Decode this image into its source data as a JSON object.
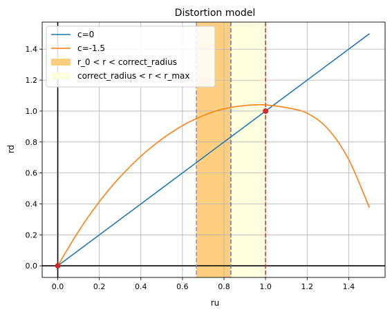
{
  "chart_data": {
    "type": "line",
    "title": "Distortion model",
    "xlabel": "ru",
    "ylabel": "rd",
    "xlim": [
      -0.075,
      1.575
    ],
    "ylim": [
      -0.075,
      1.575
    ],
    "x_ticks": [
      0.0,
      0.2,
      0.4,
      0.6,
      0.8,
      1.0,
      1.2,
      1.4
    ],
    "y_ticks": [
      0.0,
      0.2,
      0.4,
      0.6,
      0.8,
      1.0,
      1.2,
      1.4
    ],
    "x_tick_labels": [
      "0.0",
      "0.2",
      "0.4",
      "0.6",
      "0.8",
      "1.0",
      "1.2",
      "1.4"
    ],
    "y_tick_labels": [
      "0.0",
      "0.2",
      "0.4",
      "0.6",
      "0.8",
      "1.0",
      "1.2",
      "1.4"
    ],
    "grid": true,
    "legend_position": "top-left",
    "series": [
      {
        "name": "c=0",
        "color": "#1f77b4",
        "x": [
          0.0,
          0.1,
          0.2,
          0.3,
          0.4,
          0.5,
          0.6,
          0.7,
          0.8,
          0.9,
          1.0,
          1.1,
          1.2,
          1.3,
          1.4,
          1.5
        ],
        "y": [
          0.0,
          0.1,
          0.2,
          0.3,
          0.4,
          0.5,
          0.6,
          0.7,
          0.8,
          0.9,
          1.0,
          1.1,
          1.2,
          1.3,
          1.4,
          1.5
        ]
      },
      {
        "name": "c=-1.5",
        "color": "#ff7f0e",
        "x": [
          0.0,
          0.1,
          0.2,
          0.3,
          0.4,
          0.5,
          0.6,
          0.65,
          0.7,
          0.75,
          0.8,
          0.85,
          0.9,
          0.95,
          1.0,
          1.1,
          1.2,
          1.3,
          1.4,
          1.5
        ],
        "y": [
          0.0,
          0.223,
          0.414,
          0.574,
          0.708,
          0.818,
          0.906,
          0.941,
          0.971,
          0.996,
          1.014,
          1.027,
          1.036,
          1.04,
          1.04,
          1.022,
          0.986,
          0.885,
          0.687,
          0.375
        ]
      }
    ],
    "bands": [
      {
        "name": "r_0 < r < correct_radius",
        "x_start": 0.667,
        "x_end": 0.833,
        "color": "#ffcf7f"
      },
      {
        "name": "correct_radius < r < r_max",
        "x_start": 0.833,
        "x_end": 1.0,
        "color": "#ffffdf"
      }
    ],
    "vlines": [
      {
        "x": 0.667,
        "color": "#8c8cd9",
        "style": "dashed"
      },
      {
        "x": 0.833,
        "color": "#6a6ad0",
        "style": "dashed"
      },
      {
        "x": 1.0,
        "color": "#d62728",
        "style": "dashed"
      }
    ],
    "axis_lines": {
      "x0": true,
      "y0": true
    },
    "points": [
      {
        "x": 0.0,
        "y": 0.0,
        "color": "#d62728"
      },
      {
        "x": 1.0,
        "y": 1.0,
        "color": "#d62728"
      }
    ]
  }
}
